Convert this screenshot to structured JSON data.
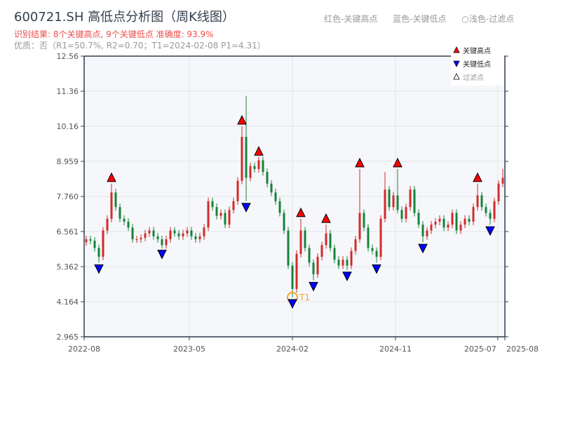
{
  "title": "600721.SH 高低点分析图（周K线图）",
  "result_text": "识别结果: 8个关键高点, 9个关键低点  准确度: 93.9%",
  "quality_text": "优质：否（R1=50.7%, R2=0.70；T1=2024-02-08 P1=4.31）",
  "legend_top": {
    "red": "红色-关键高点",
    "blue": "蓝色-关键低点",
    "light": "○浅色-过滤点"
  },
  "colors": {
    "up": "#d42a2a",
    "down": "#16833a",
    "high_marker": "#ff0000",
    "low_marker": "#0000ff",
    "t1": "#f5a623",
    "plot_bg": "#f5f7fa",
    "axis": "#2f3e4e"
  },
  "chart_data": {
    "type": "candlestick",
    "ylim": [
      2.965,
      12.56
    ],
    "yticks": [
      "2.965",
      "4.164",
      "5.362",
      "6.561",
      "7.760",
      "8.959",
      "10.16",
      "11.36",
      "12.56"
    ],
    "xticks": [
      {
        "label": "2022-08",
        "index": 0
      },
      {
        "label": "2023-05",
        "index": 25
      },
      {
        "label": "2024-02",
        "index": 49.5
      },
      {
        "label": "2024-11",
        "index": 74
      },
      {
        "label": "2025-07",
        "index": 98.3
      },
      {
        "label": "2025-08",
        "index": 100
      }
    ],
    "close": [
      6.3,
      6.25,
      6.0,
      5.7,
      6.6,
      7.0,
      7.9,
      7.4,
      7.0,
      6.9,
      6.7,
      6.3,
      6.3,
      6.35,
      6.5,
      6.6,
      6.4,
      6.3,
      6.1,
      6.3,
      6.6,
      6.5,
      6.4,
      6.5,
      6.6,
      6.4,
      6.3,
      6.4,
      6.7,
      7.6,
      7.4,
      7.1,
      7.2,
      6.8,
      7.3,
      7.6,
      8.3,
      9.8,
      8.4,
      8.8,
      8.7,
      9.0,
      8.6,
      8.2,
      7.9,
      7.6,
      7.2,
      6.6,
      5.4,
      4.6,
      5.8,
      6.6,
      6.0,
      5.5,
      5.1,
      5.7,
      6.1,
      6.5,
      6.0,
      5.6,
      5.4,
      5.6,
      5.4,
      5.9,
      6.3,
      7.2,
      6.7,
      6.0,
      5.9,
      5.7,
      7.0,
      8.0,
      7.4,
      7.8,
      7.3,
      7.0,
      7.4,
      8.0,
      7.2,
      6.8,
      6.4,
      6.6,
      6.8,
      6.9,
      7.0,
      6.7,
      6.8,
      7.2,
      6.6,
      6.8,
      7.0,
      6.9,
      7.4,
      7.8,
      7.4,
      7.2,
      7.0,
      7.6,
      8.2,
      8.4
    ],
    "high_override": {
      "38": 11.2,
      "71": 8.6,
      "99": 8.7
    },
    "key_highs": [
      {
        "index": 6,
        "price": 8.2
      },
      {
        "index": 37,
        "price": 10.16
      },
      {
        "index": 41,
        "price": 9.1
      },
      {
        "index": 51,
        "price": 7.0
      },
      {
        "index": 57,
        "price": 6.8
      },
      {
        "index": 65,
        "price": 8.7
      },
      {
        "index": 74,
        "price": 8.7
      },
      {
        "index": 93,
        "price": 8.2
      }
    ],
    "key_lows": [
      {
        "index": 3,
        "price": 5.5
      },
      {
        "index": 18,
        "price": 6.0
      },
      {
        "index": 38,
        "price": 7.6
      },
      {
        "index": 49,
        "price": 4.31
      },
      {
        "index": 54,
        "price": 4.9
      },
      {
        "index": 62,
        "price": 5.25
      },
      {
        "index": 69,
        "price": 5.5
      },
      {
        "index": 80,
        "price": 6.2
      },
      {
        "index": 96,
        "price": 6.8
      }
    ],
    "t1": {
      "label": "T1",
      "index": 49,
      "price": 4.31
    },
    "legend": {
      "high": "关键高点",
      "low": "关键低点",
      "filtered": "过滤点"
    },
    "legend_placement": "top-right",
    "grid": true
  }
}
